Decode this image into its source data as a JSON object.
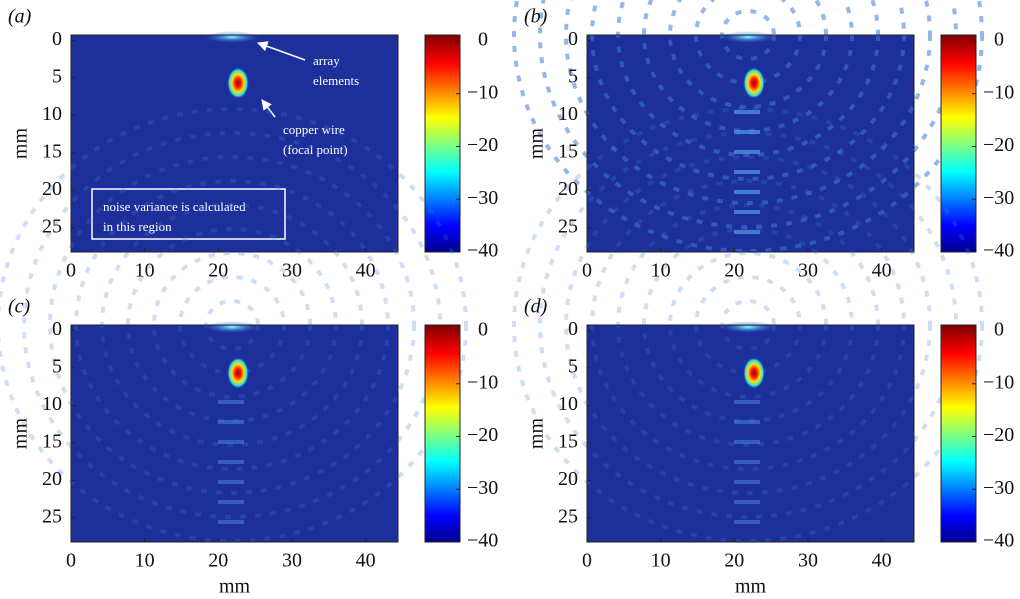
{
  "chart_data": [
    {
      "type": "heatmap",
      "panel_label": "(a)",
      "ylabel": "mm",
      "xlim": [
        0,
        44.4
      ],
      "ylim": [
        -0.7,
        28.2
      ],
      "xticks": [
        0,
        10,
        20,
        30,
        40
      ],
      "yticks": [
        0,
        5,
        10,
        15,
        20,
        25
      ],
      "clim": [
        -40,
        0
      ],
      "cticks": [
        0,
        {
          "value": -10,
          "label": "−10"
        },
        {
          "value": -20,
          "label": "−20"
        },
        {
          "value": -30,
          "label": "−30"
        },
        {
          "value": -40,
          "label": "−40"
        }
      ],
      "annotations": [
        {
          "lines": [
            "array",
            "elements"
          ]
        },
        {
          "lines": [
            "copper wire",
            "(focal point)"
          ]
        },
        {
          "lines": [
            "noise variance is calculated",
            "in this region"
          ]
        }
      ]
    },
    {
      "type": "heatmap",
      "panel_label": "(b)",
      "ylabel": "mm",
      "xlim": [
        0,
        44.4
      ],
      "ylim": [
        -0.7,
        28.2
      ],
      "xticks": [
        0,
        10,
        20,
        30,
        40
      ],
      "yticks": [
        0,
        5,
        10,
        15,
        20,
        25
      ],
      "clim": [
        -40,
        0
      ],
      "cticks": [
        0,
        {
          "value": -10,
          "label": "−10"
        },
        {
          "value": -20,
          "label": "−20"
        },
        {
          "value": -30,
          "label": "−30"
        },
        {
          "value": -40,
          "label": "−40"
        }
      ]
    },
    {
      "type": "heatmap",
      "panel_label": "(c)",
      "ylabel": "mm",
      "xlabel": "mm",
      "xlim": [
        0,
        44.4
      ],
      "ylim": [
        -0.7,
        28.2
      ],
      "xticks": [
        0,
        10,
        20,
        30,
        40
      ],
      "yticks": [
        0,
        5,
        10,
        15,
        20,
        25
      ],
      "clim": [
        -40,
        0
      ],
      "cticks": [
        0,
        {
          "value": -10,
          "label": "−10"
        },
        {
          "value": -20,
          "label": "−20"
        },
        {
          "value": -30,
          "label": "−30"
        },
        {
          "value": -40,
          "label": "−40"
        }
      ]
    },
    {
      "type": "heatmap",
      "panel_label": "(d)",
      "ylabel": "mm",
      "xlabel": "mm",
      "xlim": [
        0,
        44.4
      ],
      "ylim": [
        -0.7,
        28.2
      ],
      "xticks": [
        0,
        10,
        20,
        30,
        40
      ],
      "yticks": [
        0,
        5,
        10,
        15,
        20,
        25
      ],
      "clim": [
        -40,
        0
      ],
      "cticks": [
        0,
        {
          "value": -10,
          "label": "−10"
        },
        {
          "value": -20,
          "label": "−20"
        },
        {
          "value": -30,
          "label": "−30"
        },
        {
          "value": -40,
          "label": "−40"
        }
      ]
    }
  ]
}
